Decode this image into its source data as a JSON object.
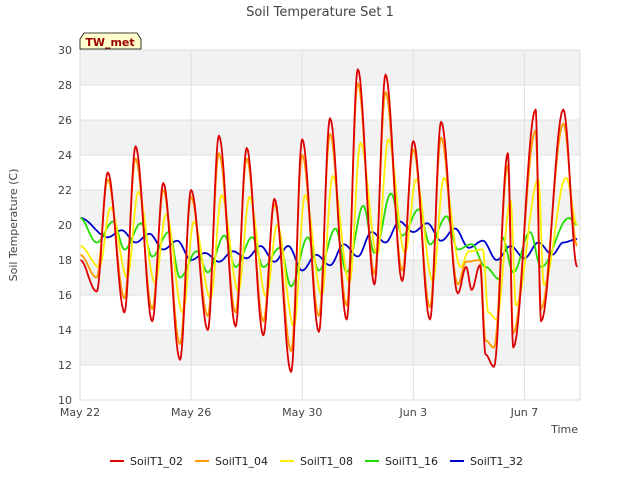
{
  "chart_data": {
    "type": "line",
    "title": "Soil Temperature Set 1",
    "xlabel": "Time",
    "ylabel": "Soil Temperature (C)",
    "site_label": "TW_met",
    "x_ticks": [
      "May 22",
      "May 26",
      "May 30",
      "Jun 3",
      "Jun 7"
    ],
    "x_tick_days": [
      0,
      4,
      8,
      12,
      16
    ],
    "x_range_days": [
      0,
      18
    ],
    "y_ticks": [
      10,
      12,
      14,
      16,
      18,
      20,
      22,
      24,
      26,
      28,
      30
    ],
    "ylim": [
      10,
      30
    ],
    "grid": true,
    "legend_position": "bottom",
    "day_offset_of_first_label": "May 22",
    "series": [
      {
        "name": "SoilT1_02",
        "color": "#dd0000",
        "min_points": [
          [
            0.0,
            18.0
          ],
          [
            0.6,
            16.2
          ],
          [
            1.6,
            15.0
          ],
          [
            2.6,
            14.5
          ],
          [
            3.6,
            12.3
          ],
          [
            4.6,
            14.0
          ],
          [
            5.6,
            14.2
          ],
          [
            6.6,
            13.7
          ],
          [
            7.6,
            11.6
          ],
          [
            8.6,
            13.9
          ],
          [
            9.6,
            14.6
          ],
          [
            10.6,
            16.6
          ],
          [
            11.6,
            16.8
          ],
          [
            12.6,
            14.6
          ],
          [
            13.6,
            16.1
          ],
          [
            14.1,
            16.3
          ],
          [
            14.6,
            12.6
          ],
          [
            14.9,
            11.9
          ],
          [
            15.6,
            13.0
          ],
          [
            16.6,
            14.5
          ]
        ],
        "max_points": [
          [
            1.0,
            23.0
          ],
          [
            2.0,
            24.5
          ],
          [
            3.0,
            22.4
          ],
          [
            4.0,
            22.0
          ],
          [
            5.0,
            25.1
          ],
          [
            6.0,
            24.4
          ],
          [
            7.0,
            21.5
          ],
          [
            8.0,
            24.9
          ],
          [
            9.0,
            26.1
          ],
          [
            10.0,
            28.9
          ],
          [
            11.0,
            28.6
          ],
          [
            12.0,
            24.8
          ],
          [
            13.0,
            25.9
          ],
          [
            13.9,
            17.6
          ],
          [
            14.4,
            17.7
          ],
          [
            15.4,
            24.1
          ],
          [
            16.4,
            26.6
          ],
          [
            17.4,
            26.6
          ]
        ],
        "end_value": 17.6
      },
      {
        "name": "SoilT1_04",
        "color": "#ff9900",
        "min_points": [
          [
            0.0,
            18.3
          ],
          [
            0.6,
            17.0
          ],
          [
            1.6,
            15.8
          ],
          [
            2.6,
            15.2
          ],
          [
            3.6,
            13.2
          ],
          [
            4.6,
            14.8
          ],
          [
            5.6,
            15.0
          ],
          [
            6.6,
            14.5
          ],
          [
            7.6,
            12.8
          ],
          [
            8.6,
            14.8
          ],
          [
            9.6,
            15.4
          ],
          [
            10.6,
            17.2
          ],
          [
            11.6,
            17.4
          ],
          [
            12.6,
            15.3
          ],
          [
            13.6,
            16.6
          ],
          [
            14.6,
            13.4
          ],
          [
            14.9,
            13.0
          ],
          [
            15.6,
            13.8
          ],
          [
            16.6,
            15.2
          ]
        ],
        "max_points": [
          [
            1.0,
            22.6
          ],
          [
            2.0,
            23.8
          ],
          [
            3.0,
            22.0
          ],
          [
            4.0,
            21.6
          ],
          [
            5.0,
            24.1
          ],
          [
            6.0,
            23.8
          ],
          [
            7.0,
            21.2
          ],
          [
            8.0,
            24.0
          ],
          [
            9.0,
            25.2
          ],
          [
            10.0,
            28.1
          ],
          [
            11.0,
            27.6
          ],
          [
            12.0,
            24.3
          ],
          [
            13.0,
            25.0
          ],
          [
            13.9,
            17.9
          ],
          [
            14.4,
            18.0
          ],
          [
            15.4,
            23.4
          ],
          [
            16.4,
            25.4
          ],
          [
            17.4,
            25.8
          ]
        ],
        "end_value": 18.8
      },
      {
        "name": "SoilT1_08",
        "color": "#ffee00",
        "min_points": [
          [
            0.0,
            18.8
          ],
          [
            0.7,
            17.6
          ],
          [
            1.7,
            17.0
          ],
          [
            2.7,
            16.7
          ],
          [
            3.7,
            15.0
          ],
          [
            4.7,
            15.8
          ],
          [
            5.7,
            16.2
          ],
          [
            6.7,
            15.9
          ],
          [
            7.7,
            14.2
          ],
          [
            8.7,
            16.0
          ],
          [
            9.7,
            16.7
          ],
          [
            10.7,
            18.3
          ],
          [
            11.7,
            18.4
          ],
          [
            12.7,
            16.8
          ],
          [
            13.7,
            17.6
          ],
          [
            14.7,
            15.0
          ],
          [
            15.0,
            14.6
          ],
          [
            15.7,
            15.4
          ],
          [
            16.7,
            16.6
          ]
        ],
        "max_points": [
          [
            1.1,
            21.0
          ],
          [
            2.1,
            21.9
          ],
          [
            3.1,
            20.6
          ],
          [
            4.1,
            20.2
          ],
          [
            5.1,
            21.7
          ],
          [
            6.1,
            21.6
          ],
          [
            7.1,
            20.0
          ],
          [
            8.1,
            21.7
          ],
          [
            9.1,
            22.8
          ],
          [
            10.1,
            24.7
          ],
          [
            11.1,
            24.9
          ],
          [
            12.1,
            22.6
          ],
          [
            13.1,
            22.7
          ],
          [
            14.0,
            18.5
          ],
          [
            14.5,
            18.6
          ],
          [
            15.5,
            21.4
          ],
          [
            16.5,
            22.6
          ],
          [
            17.5,
            22.7
          ]
        ],
        "end_value": 20.0
      },
      {
        "name": "SoilT1_16",
        "color": "#22dd00",
        "min_points": [
          [
            0.6,
            19.0
          ],
          [
            1.6,
            18.6
          ],
          [
            2.6,
            18.2
          ],
          [
            3.6,
            17.0
          ],
          [
            4.6,
            17.3
          ],
          [
            5.6,
            17.6
          ],
          [
            6.6,
            17.6
          ],
          [
            7.6,
            16.5
          ],
          [
            8.6,
            17.4
          ],
          [
            9.6,
            17.3
          ],
          [
            10.6,
            18.4
          ],
          [
            11.6,
            19.4
          ],
          [
            12.6,
            18.9
          ],
          [
            13.6,
            18.6
          ],
          [
            14.6,
            17.6
          ],
          [
            15.1,
            16.9
          ],
          [
            15.6,
            17.3
          ],
          [
            16.6,
            17.6
          ]
        ],
        "max_points": [
          [
            0.0,
            20.4
          ],
          [
            1.2,
            20.2
          ],
          [
            2.2,
            20.1
          ],
          [
            3.2,
            19.6
          ],
          [
            4.2,
            18.5
          ],
          [
            5.2,
            19.4
          ],
          [
            6.2,
            19.3
          ],
          [
            7.2,
            18.7
          ],
          [
            8.2,
            19.3
          ],
          [
            9.2,
            19.8
          ],
          [
            10.2,
            21.1
          ],
          [
            11.2,
            21.8
          ],
          [
            12.2,
            20.9
          ],
          [
            13.2,
            20.5
          ],
          [
            14.1,
            18.9
          ],
          [
            15.2,
            19.3
          ],
          [
            16.2,
            19.6
          ],
          [
            17.6,
            20.4
          ]
        ],
        "end_value": 20.0
      },
      {
        "name": "SoilT1_32",
        "color": "#0000cc",
        "min_points": [
          [
            1.0,
            19.3
          ],
          [
            2.0,
            19.0
          ],
          [
            3.0,
            18.6
          ],
          [
            4.0,
            18.0
          ],
          [
            5.0,
            17.9
          ],
          [
            6.0,
            18.1
          ],
          [
            7.0,
            17.9
          ],
          [
            8.0,
            17.4
          ],
          [
            9.0,
            17.7
          ],
          [
            10.0,
            18.2
          ],
          [
            11.0,
            19.0
          ],
          [
            12.0,
            19.6
          ],
          [
            13.0,
            19.1
          ],
          [
            14.0,
            18.7
          ],
          [
            15.0,
            18.0
          ],
          [
            16.0,
            18.1
          ],
          [
            17.0,
            18.3
          ]
        ],
        "max_points": [
          [
            0.0,
            20.4
          ],
          [
            1.5,
            19.7
          ],
          [
            2.5,
            19.5
          ],
          [
            3.5,
            19.1
          ],
          [
            4.5,
            18.4
          ],
          [
            5.5,
            18.5
          ],
          [
            6.5,
            18.8
          ],
          [
            7.5,
            18.8
          ],
          [
            8.5,
            18.3
          ],
          [
            9.5,
            18.9
          ],
          [
            10.5,
            19.6
          ],
          [
            11.5,
            20.2
          ],
          [
            12.5,
            20.1
          ],
          [
            13.5,
            19.8
          ],
          [
            14.5,
            19.1
          ],
          [
            15.5,
            18.8
          ],
          [
            16.5,
            19.0
          ],
          [
            17.4,
            19.0
          ]
        ],
        "end_value": 19.2
      }
    ]
  }
}
